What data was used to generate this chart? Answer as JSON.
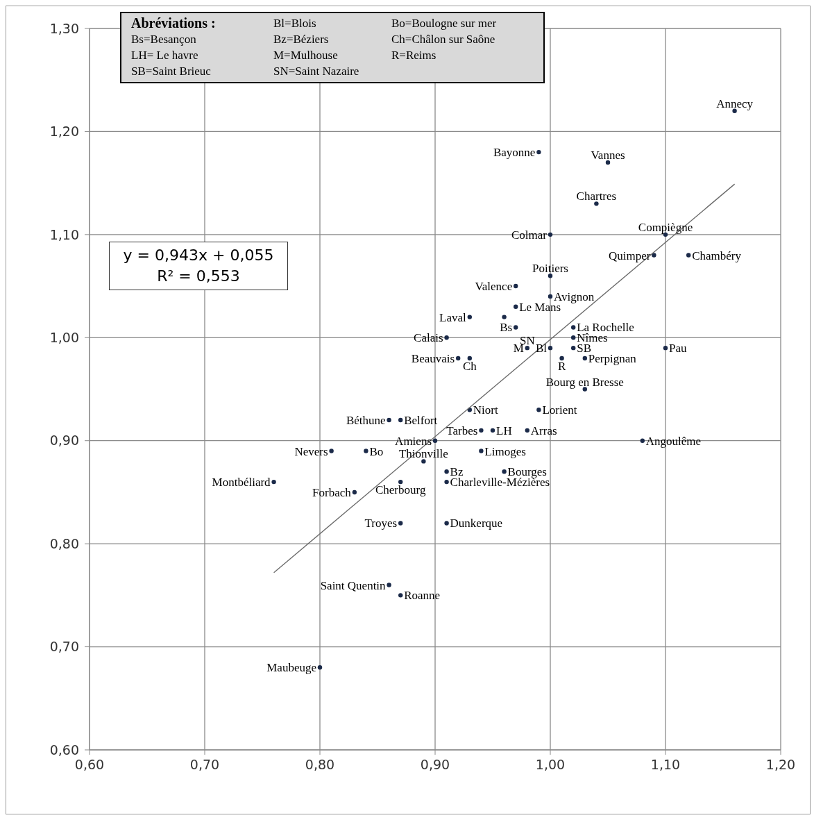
{
  "chart_data": {
    "type": "scatter",
    "xlim": [
      0.6,
      1.2
    ],
    "ylim": [
      0.6,
      1.3
    ],
    "xticks": [
      {
        "value": 0.6,
        "label": "0,60"
      },
      {
        "value": 0.7,
        "label": "0,70"
      },
      {
        "value": 0.8,
        "label": "0,80"
      },
      {
        "value": 0.9,
        "label": "0,90"
      },
      {
        "value": 1.0,
        "label": "1,00"
      },
      {
        "value": 1.1,
        "label": "1,10"
      },
      {
        "value": 1.2,
        "label": "1,20"
      }
    ],
    "yticks": [
      {
        "value": 0.6,
        "label": "0,60"
      },
      {
        "value": 0.7,
        "label": "0,70"
      },
      {
        "value": 0.8,
        "label": "0,80"
      },
      {
        "value": 0.9,
        "label": "0,90"
      },
      {
        "value": 1.0,
        "label": "1,00"
      },
      {
        "value": 1.1,
        "label": "1,10"
      },
      {
        "value": 1.2,
        "label": "1,20"
      },
      {
        "value": 1.3,
        "label": "1,30"
      }
    ],
    "grid": true,
    "marker": "circle",
    "series": [
      {
        "color": "#1b2a49",
        "x": [
          1.16,
          0.99,
          1.05,
          1.04,
          1.0,
          1.1,
          1.09,
          1.12,
          1.0,
          0.97,
          1.0,
          0.97,
          0.93,
          0.97,
          1.02,
          0.91,
          1.02,
          0.98,
          1.0,
          1.02,
          1.03,
          1.1,
          1.01,
          0.92,
          0.93,
          1.03,
          0.93,
          0.99,
          0.86,
          0.87,
          0.9,
          0.94,
          0.95,
          0.98,
          0.81,
          0.84,
          0.94,
          0.89,
          0.91,
          0.96,
          0.76,
          0.87,
          0.91,
          0.83,
          0.87,
          0.91,
          0.86,
          0.87,
          0.8,
          1.08,
          0.96
        ],
        "values": [
          1.22,
          1.18,
          1.17,
          1.13,
          1.1,
          1.1,
          1.08,
          1.08,
          1.06,
          1.05,
          1.04,
          1.03,
          1.02,
          1.01,
          1.01,
          1.0,
          1.0,
          0.99,
          0.99,
          0.99,
          0.98,
          0.99,
          0.98,
          0.98,
          0.98,
          0.95,
          0.93,
          0.93,
          0.92,
          0.92,
          0.9,
          0.91,
          0.91,
          0.91,
          0.89,
          0.89,
          0.89,
          0.88,
          0.87,
          0.87,
          0.86,
          0.86,
          0.86,
          0.85,
          0.82,
          0.82,
          0.76,
          0.75,
          0.68,
          0.9,
          1.02
        ]
      },
      {
        "type": "line",
        "marker": "none",
        "color": "#6b6b6b",
        "x": [
          0.76,
          1.16
        ],
        "values": [
          0.772,
          1.149
        ]
      }
    ],
    "annotations": [
      "Abréviations :",
      "Bl=Blois",
      "Bo=Boulogne sur mer",
      "Bs=Besançon",
      "Bz=Béziers",
      "Ch=Châlon sur Saône",
      "LH= Le havre",
      "M=Mulhouse",
      "R=Reims",
      "SB=Saint Brieuc",
      "SN=Saint Nazaire",
      "y = 0,943x + 0,055",
      "R² = 0,553",
      {
        "text": "Annecy",
        "x": 1.16,
        "y": 1.22
      },
      {
        "text": "Bayonne",
        "x": 0.99,
        "y": 1.18
      },
      {
        "text": "Vannes",
        "x": 1.05,
        "y": 1.17
      },
      {
        "text": "Chartres",
        "x": 1.04,
        "y": 1.13
      },
      {
        "text": "Colmar",
        "x": 1.0,
        "y": 1.1
      },
      {
        "text": "Compiègne",
        "x": 1.1,
        "y": 1.1
      },
      {
        "text": "Quimper",
        "x": 1.09,
        "y": 1.08
      },
      {
        "text": "Chambéry",
        "x": 1.12,
        "y": 1.08
      },
      {
        "text": "Poitiers",
        "x": 1.0,
        "y": 1.06
      },
      {
        "text": "Valence",
        "x": 0.97,
        "y": 1.05
      },
      {
        "text": "Avignon",
        "x": 1.0,
        "y": 1.04
      },
      {
        "text": "Le Mans",
        "x": 0.97,
        "y": 1.03
      },
      {
        "text": "Laval",
        "x": 0.93,
        "y": 1.02
      },
      {
        "text": "Bs",
        "x": 0.97,
        "y": 1.01
      },
      {
        "text": "La Rochelle",
        "x": 1.02,
        "y": 1.01
      },
      {
        "text": "Calais",
        "x": 0.91,
        "y": 1.0
      },
      {
        "text": "Nîmes",
        "x": 1.02,
        "y": 1.0
      },
      {
        "text": "SN",
        "x": 0.98,
        "y": 0.99
      },
      {
        "text": "M",
        "x": 0.98,
        "y": 0.99
      },
      {
        "text": "Bl",
        "x": 1.0,
        "y": 0.99
      },
      {
        "text": "SB",
        "x": 1.02,
        "y": 0.99
      },
      {
        "text": "Perpignan",
        "x": 1.03,
        "y": 0.98
      },
      {
        "text": "Pau",
        "x": 1.1,
        "y": 0.99
      },
      {
        "text": "R",
        "x": 1.01,
        "y": 0.98
      },
      {
        "text": "Beauvais",
        "x": 0.92,
        "y": 0.98
      },
      {
        "text": "Ch",
        "x": 0.93,
        "y": 0.98
      },
      {
        "text": "Bourg en Bresse",
        "x": 1.03,
        "y": 0.95
      },
      {
        "text": "Niort",
        "x": 0.93,
        "y": 0.93
      },
      {
        "text": "Lorient",
        "x": 0.99,
        "y": 0.93
      },
      {
        "text": "Béthune",
        "x": 0.86,
        "y": 0.92
      },
      {
        "text": "Belfort",
        "x": 0.87,
        "y": 0.92
      },
      {
        "text": "Amiens",
        "x": 0.9,
        "y": 0.9
      },
      {
        "text": "Tarbes",
        "x": 0.94,
        "y": 0.91
      },
      {
        "text": "LH",
        "x": 0.95,
        "y": 0.91
      },
      {
        "text": "Arras",
        "x": 0.98,
        "y": 0.91
      },
      {
        "text": "Nevers",
        "x": 0.81,
        "y": 0.89
      },
      {
        "text": "Bo",
        "x": 0.84,
        "y": 0.89
      },
      {
        "text": "Limoges",
        "x": 0.94,
        "y": 0.89
      },
      {
        "text": "Thionville",
        "x": 0.89,
        "y": 0.88
      },
      {
        "text": "Bz",
        "x": 0.91,
        "y": 0.87
      },
      {
        "text": "Bourges",
        "x": 0.96,
        "y": 0.87
      },
      {
        "text": "Montbéliard",
        "x": 0.76,
        "y": 0.86
      },
      {
        "text": "Cherbourg",
        "x": 0.87,
        "y": 0.86
      },
      {
        "text": "Charleville-Mézières",
        "x": 0.91,
        "y": 0.86
      },
      {
        "text": "Forbach",
        "x": 0.83,
        "y": 0.85
      },
      {
        "text": "Troyes",
        "x": 0.87,
        "y": 0.82
      },
      {
        "text": "Dunkerque",
        "x": 0.91,
        "y": 0.82
      },
      {
        "text": "Saint Quentin",
        "x": 0.86,
        "y": 0.76
      },
      {
        "text": "Roanne",
        "x": 0.87,
        "y": 0.75
      },
      {
        "text": "Maubeuge",
        "x": 0.8,
        "y": 0.68
      },
      {
        "text": "Angoulême",
        "x": 1.08,
        "y": 0.9
      }
    ]
  }
}
